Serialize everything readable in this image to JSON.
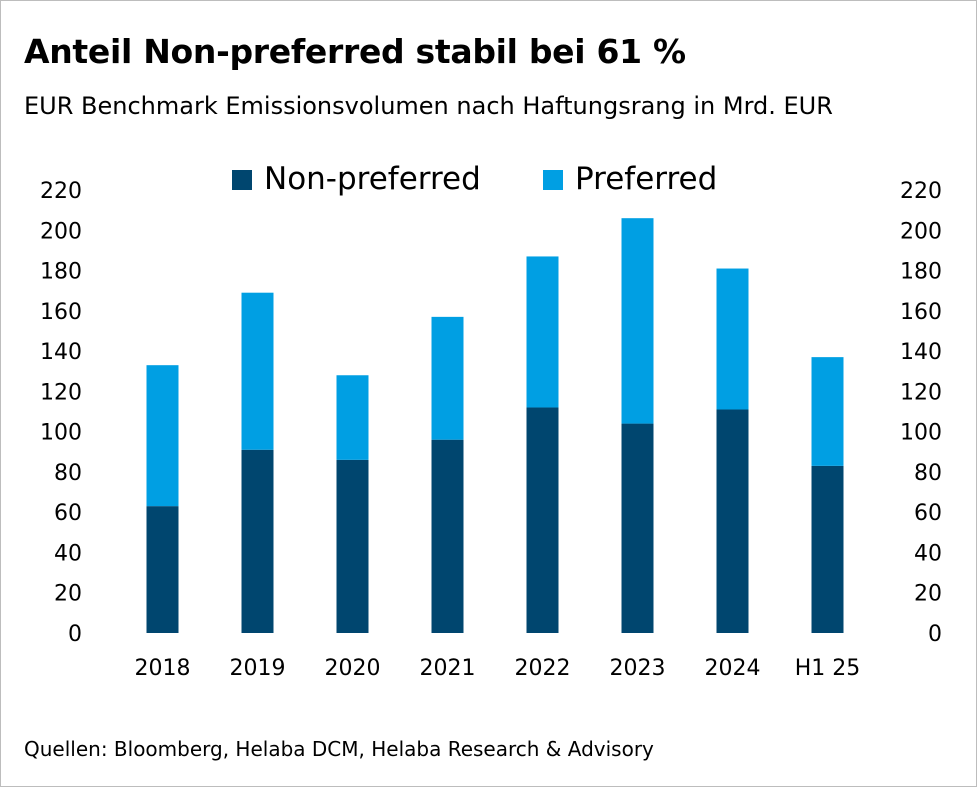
{
  "header": {
    "title": "Anteil Non-preferred stabil bei 61 %",
    "subtitle": "EUR Benchmark Emissionsvolumen nach Haftungsrang in Mrd. EUR"
  },
  "footer": {
    "source": "Quellen: Bloomberg, Helaba DCM, Helaba Research & Advisory"
  },
  "colors": {
    "non_preferred": "#00466f",
    "preferred": "#009fe3"
  },
  "chart_data": {
    "type": "bar",
    "stacked": true,
    "title": "Anteil Non-preferred stabil bei 61 %",
    "subtitle": "EUR Benchmark Emissionsvolumen nach Haftungsrang in Mrd. EUR",
    "categories": [
      "2018",
      "2019",
      "2020",
      "2021",
      "2022",
      "2023",
      "2024",
      "H1 25"
    ],
    "series": [
      {
        "name": "Non-preferred",
        "color": "#00466f",
        "values": [
          63,
          91,
          86,
          96,
          112,
          104,
          111,
          83
        ]
      },
      {
        "name": "Preferred",
        "color": "#009fe3",
        "values": [
          70,
          78,
          42,
          61,
          75,
          102,
          70,
          54
        ]
      }
    ],
    "ylim": [
      0,
      220
    ],
    "yticks": [
      0,
      20,
      40,
      60,
      80,
      100,
      120,
      140,
      160,
      180,
      200,
      220
    ],
    "y_axis_both_sides": true,
    "grid": false,
    "legend_position": "top-center",
    "xlabel": "",
    "ylabel": ""
  }
}
